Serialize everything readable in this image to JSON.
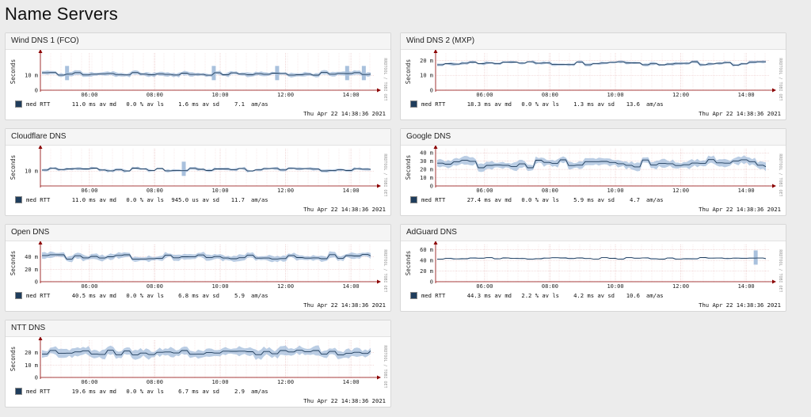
{
  "page": {
    "title": "Name Servers"
  },
  "common": {
    "ylabel": "Seconds",
    "x_ticks": [
      "06:00",
      "08:00",
      "10:00",
      "12:00",
      "14:00"
    ],
    "side_label": "RRDTOOL / TOBI OETIKER",
    "date": "Thu Apr 22 14:38:36 2021",
    "series_name": "med RTT",
    "unit_med": "ms av md",
    "unit_loss": "% av ls",
    "unit_am": "am/as",
    "line_color": "#1f3d5c",
    "band_color": "#a9c1dd"
  },
  "panels": [
    {
      "title": "Wind DNS 1 (FCO)",
      "med": "11.0",
      "loss": "0.0",
      "sd": "1.6",
      "sd_unit": "ms av sd",
      "am": "7.1",
      "chart_data": {
        "type": "line",
        "ylim": [
          0,
          25
        ],
        "yticks": [
          {
            "v": 0,
            "t": "0"
          },
          {
            "v": 10,
            "t": "10 m"
          }
        ],
        "base": 11,
        "noise": 1.0,
        "band": 1.2,
        "spikes": [
          0.08,
          0.52,
          0.92,
          0.71,
          0.97
        ]
      }
    },
    {
      "title": "Wind DNS 2 (MXP)",
      "med": "18.3",
      "loss": "0.0",
      "sd": "1.3",
      "sd_unit": "ms av sd",
      "am": "13.6",
      "chart_data": {
        "type": "line",
        "ylim": [
          0,
          25
        ],
        "yticks": [
          {
            "v": 0,
            "t": "0"
          },
          {
            "v": 10,
            "t": "10 m"
          },
          {
            "v": 20,
            "t": "20 m"
          }
        ],
        "base": 18,
        "noise": 1.2,
        "band": 0.8,
        "spikes": []
      }
    },
    {
      "title": "Cloudflare DNS",
      "med": "11.0",
      "loss": "0.0",
      "sd": "945.0",
      "sd_unit": "us av sd",
      "am": "11.7",
      "chart_data": {
        "type": "line",
        "ylim": [
          0,
          25
        ],
        "yticks": [
          {
            "v": 10,
            "t": "10 m"
          }
        ],
        "base": 11,
        "noise": 1.0,
        "band": 0.8,
        "spikes": [
          0.43
        ]
      }
    },
    {
      "title": "Google DNS",
      "med": "27.4",
      "loss": "0.0",
      "sd": "5.9",
      "sd_unit": "ms av sd",
      "am": "4.7",
      "chart_data": {
        "type": "line",
        "ylim": [
          0,
          45
        ],
        "yticks": [
          {
            "v": 0,
            "t": "0"
          },
          {
            "v": 10,
            "t": "10 m"
          },
          {
            "v": 20,
            "t": "20 m"
          },
          {
            "v": 30,
            "t": "30 m"
          },
          {
            "v": 40,
            "t": "40 m"
          }
        ],
        "base": 27,
        "noise": 5.0,
        "band": 4.0,
        "spikes": []
      }
    },
    {
      "title": "Open DNS",
      "med": "40.5",
      "loss": "0.0",
      "sd": "6.8",
      "sd_unit": "ms av sd",
      "am": "5.9",
      "chart_data": {
        "type": "line",
        "ylim": [
          0,
          60
        ],
        "yticks": [
          {
            "v": 0,
            "t": "0"
          },
          {
            "v": 20,
            "t": "20 m"
          },
          {
            "v": 40,
            "t": "40 m"
          }
        ],
        "base": 40,
        "noise": 4.0,
        "band": 4.0,
        "spikes": []
      }
    },
    {
      "title": "AdGuard DNS",
      "med": "44.3",
      "loss": "2.2",
      "sd": "4.2",
      "sd_unit": "ms av sd",
      "am": "10.6",
      "chart_data": {
        "type": "line",
        "ylim": [
          0,
          70
        ],
        "yticks": [
          {
            "v": 0,
            "t": "0"
          },
          {
            "v": 20,
            "t": "20 m"
          },
          {
            "v": 40,
            "t": "40 m"
          },
          {
            "v": 60,
            "t": "60 m"
          }
        ],
        "base": 44,
        "noise": 1.5,
        "band": 1.0,
        "spikes": [
          0.96
        ]
      }
    },
    {
      "title": "NTT DNS",
      "med": "19.6",
      "loss": "0.0",
      "sd": "6.7",
      "sd_unit": "ms av sd",
      "am": "2.9",
      "chart_data": {
        "type": "line",
        "ylim": [
          0,
          30
        ],
        "yticks": [
          {
            "v": 0,
            "t": "0"
          },
          {
            "v": 10,
            "t": "10 m"
          },
          {
            "v": 20,
            "t": "20 m"
          }
        ],
        "base": 20,
        "noise": 2.0,
        "band": 3.0,
        "spikes": []
      }
    }
  ]
}
